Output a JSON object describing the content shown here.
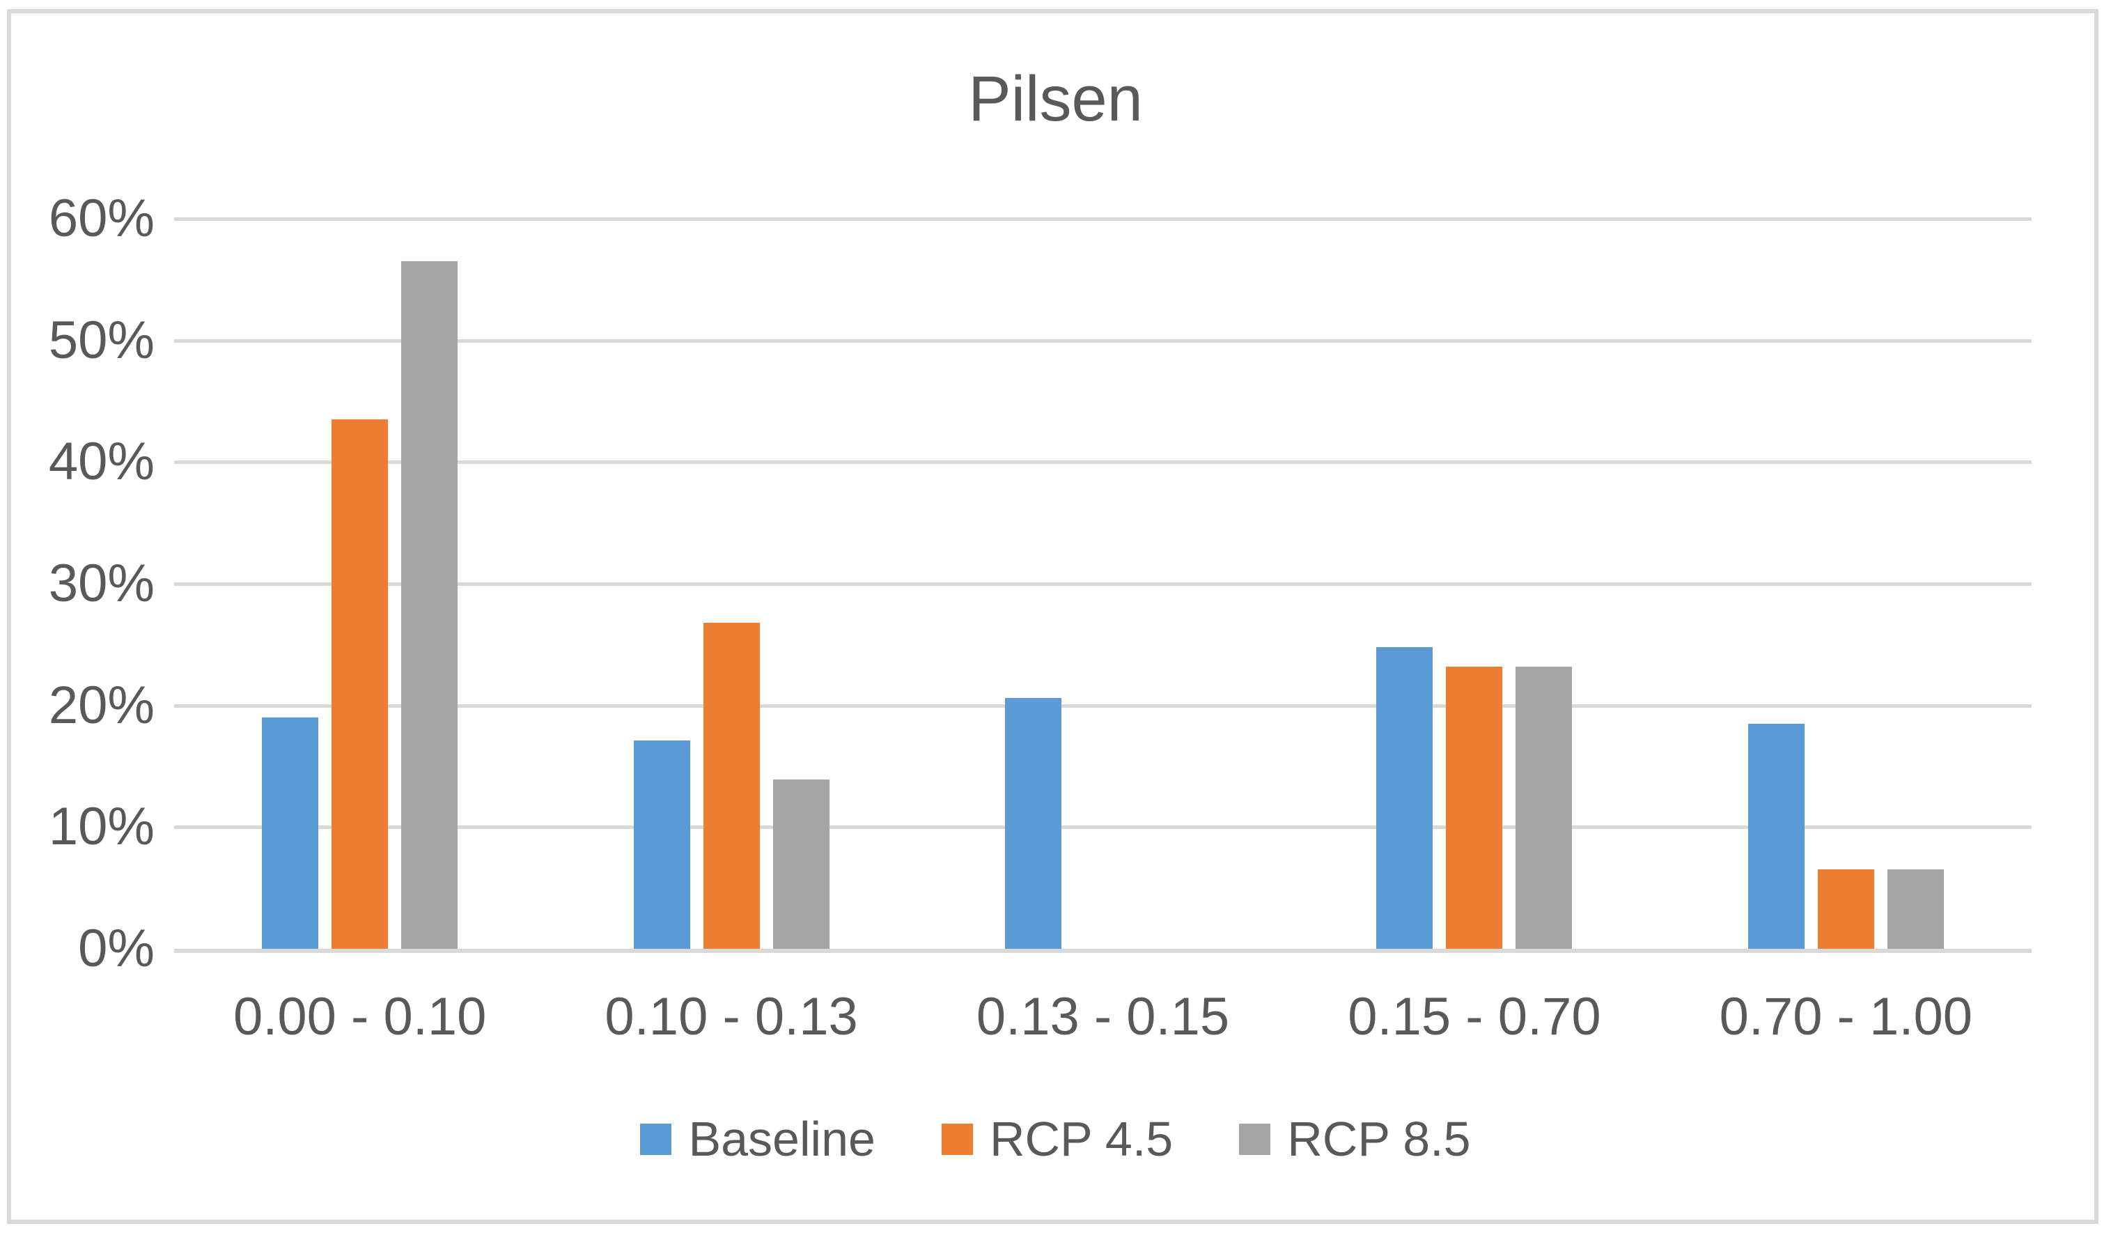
{
  "title": "Pilsen",
  "colors": {
    "baseline_blue": "#5B9BD5",
    "rcp45_orange": "#ED7D31",
    "rcp85_gray": "#A5A5A5",
    "gridline": "#D9D9D9",
    "axis_line": "#D9D9D9",
    "frame_border": "#D9D9D9",
    "text": "#595959"
  },
  "chart_data": {
    "type": "bar",
    "title": "Pilsen",
    "categories": [
      "0.00 - 0.10",
      "0.10 - 0.13",
      "0.13 - 0.15",
      "0.15 - 0.70",
      "0.70 - 1.00"
    ],
    "series": [
      {
        "name": "Baseline",
        "color": "#5B9BD5",
        "values": [
          19.0,
          17.1,
          20.6,
          24.8,
          18.5
        ]
      },
      {
        "name": "RCP 4.5",
        "color": "#ED7D31",
        "values": [
          43.5,
          26.8,
          0,
          23.2,
          6.5
        ]
      },
      {
        "name": "RCP 8.5",
        "color": "#A5A5A5",
        "values": [
          56.5,
          13.9,
          0,
          23.2,
          6.5
        ]
      }
    ],
    "y_ticks": [
      "60%",
      "50%",
      "40%",
      "30%",
      "20%",
      "10%",
      "0%"
    ],
    "ylim": [
      0,
      60
    ],
    "y_tick_step": 10,
    "grid": true,
    "legend_position": "bottom",
    "xlabel": "",
    "ylabel": ""
  }
}
